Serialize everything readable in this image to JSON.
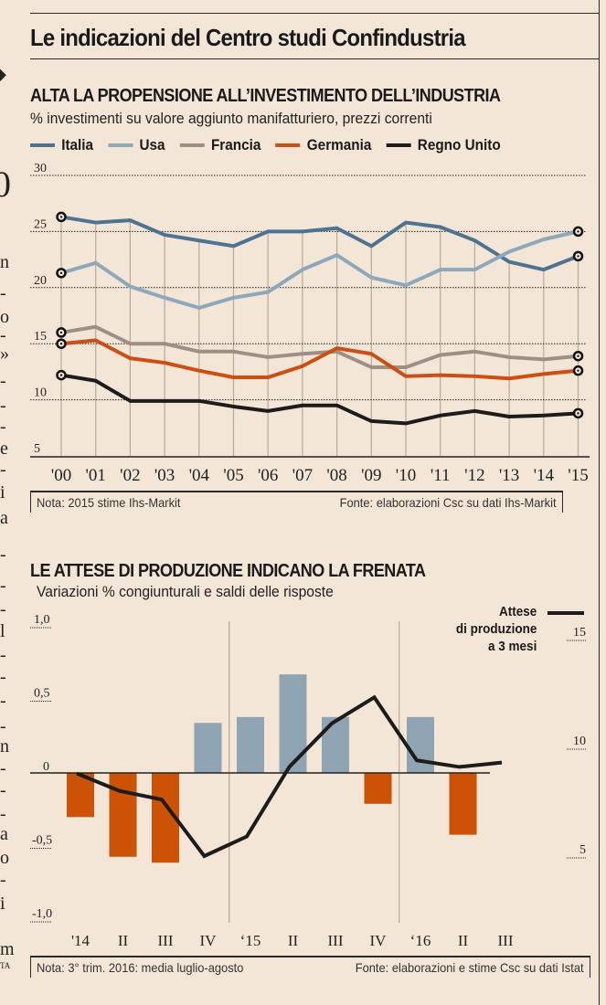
{
  "header": {
    "title": "Le indicazioni del Centro studi Confindustria"
  },
  "left_margin_fragments": [
    "◆",
    "0",
    "n",
    "-",
    "o",
    "-",
    "»",
    "-",
    "-",
    "-",
    "e",
    "-",
    "i",
    "a",
    "-",
    "-",
    "-",
    "l",
    "-",
    "-",
    "-",
    "-",
    "n",
    "-",
    "-",
    "-",
    "a",
    "o",
    "-",
    "i",
    "m",
    "TA"
  ],
  "chart1": {
    "title": "ALTA LA PROPENSIONE ALL’INVESTIMENTO DELL’INDUSTRIA",
    "subtitle": "% investimenti su valore aggiunto manifatturiero, prezzi correnti",
    "note": "Nota: 2015 stime Ihs-Markit",
    "source": "Fonte: elaborazioni Csc su dati Ihs-Markit"
  },
  "chart2": {
    "title": "LE ATTESE DI PRODUZIONE INDICANO LA FRENATA",
    "subtitle": "Variazioni % congiunturali e saldi delle risposte",
    "legend_line": [
      "Attese",
      "di produzione",
      "a 3 mesi"
    ],
    "note": "Nota: 3° trim. 2016: media luglio-agosto",
    "source": "Fonte: elaborazioni e stime Csc su dati Istat"
  },
  "chart_data": [
    {
      "type": "line",
      "title": "ALTA LA PROPENSIONE ALL’INVESTIMENTO DELL’INDUSTRIA",
      "subtitle": "% investimenti su valore aggiunto manifatturiero, prezzi correnti",
      "xlabel": "",
      "ylabel": "",
      "x": [
        "'00",
        "'01",
        "'02",
        "'03",
        "'04",
        "'05",
        "'06",
        "'07",
        "'08",
        "'09",
        "'10",
        "'11",
        "'12",
        "'13",
        "'14",
        "'15"
      ],
      "ylim": [
        5,
        30
      ],
      "yticks": [
        5,
        10,
        15,
        20,
        25,
        30
      ],
      "grid": true,
      "legend": "top",
      "series": [
        {
          "name": "Italia",
          "color": "#4d7393",
          "values": [
            26.3,
            25.8,
            26.0,
            24.7,
            24.2,
            23.7,
            25.0,
            25.0,
            25.3,
            23.7,
            25.8,
            25.4,
            24.2,
            22.3,
            21.6,
            22.8
          ]
        },
        {
          "name": "Usa",
          "color": "#8ea8bb",
          "values": [
            21.3,
            22.2,
            20.1,
            19.1,
            18.2,
            19.1,
            19.6,
            21.6,
            22.9,
            20.9,
            20.2,
            21.6,
            21.6,
            23.2,
            24.3,
            25.0
          ]
        },
        {
          "name": "Francia",
          "color": "#9d8f84",
          "values": [
            16.0,
            16.5,
            15.0,
            15.0,
            14.3,
            14.3,
            13.8,
            14.1,
            14.3,
            12.9,
            12.9,
            14.0,
            14.3,
            13.8,
            13.6,
            13.9
          ]
        },
        {
          "name": "Germania",
          "color": "#cc4e12",
          "values": [
            15.0,
            15.3,
            13.7,
            13.3,
            12.6,
            12.0,
            12.0,
            13.0,
            14.6,
            14.1,
            12.1,
            12.2,
            12.1,
            11.9,
            12.3,
            12.6
          ]
        },
        {
          "name": "Regno Unito",
          "color": "#1c1c1c",
          "values": [
            12.2,
            11.7,
            9.9,
            9.9,
            9.9,
            9.4,
            9.0,
            9.5,
            9.5,
            8.1,
            7.9,
            8.6,
            9.0,
            8.5,
            8.6,
            8.8
          ]
        }
      ]
    },
    {
      "type": "bar",
      "title": "LE ATTESE DI PRODUZIONE INDICANO LA FRENATA",
      "subtitle": "Variazioni % congiunturali e saldi delle risposte",
      "categories": [
        "'14",
        "II",
        "III",
        "IV",
        "‘15",
        "II",
        "III",
        "IV",
        "‘16",
        "II",
        "III"
      ],
      "ylim": [
        -1.0,
        1.0
      ],
      "yticks": [
        "1,0",
        "0,5",
        "0",
        "-0,5",
        "-1,0"
      ],
      "ytick_values": [
        1.0,
        0.5,
        0,
        -0.5,
        -1.0
      ],
      "y2lim": [
        3,
        17
      ],
      "y2ticks": [
        5,
        10,
        15
      ],
      "positive_color": "#8ea4b2",
      "negative_color": "#cc5206",
      "series": [
        {
          "name": "Variazioni % congiunturali",
          "type": "bar",
          "axis": "left",
          "values": [
            -0.3,
            -0.57,
            -0.61,
            0.34,
            0.38,
            0.67,
            0.38,
            -0.21,
            0.38,
            -0.42,
            null
          ]
        },
        {
          "name": "Attese di produzione a 3 mesi",
          "type": "line",
          "axis": "right",
          "color": "#1c1c1c",
          "values": [
            8.8,
            8.0,
            7.6,
            5.0,
            5.9,
            9.1,
            11.1,
            12.3,
            9.4,
            9.1,
            9.3
          ]
        }
      ]
    }
  ]
}
